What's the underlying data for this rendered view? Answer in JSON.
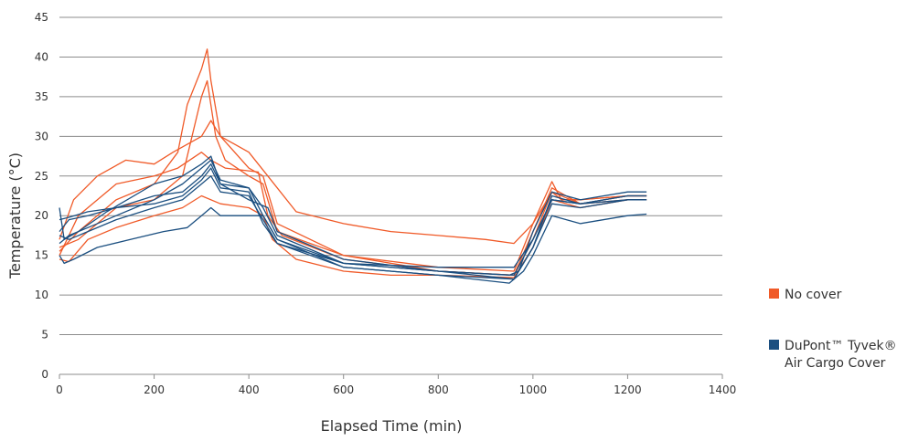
{
  "chart_data": {
    "type": "line",
    "title": "",
    "xlabel": "Elapsed Time (min)",
    "ylabel": "Temperature (°C)",
    "xlim": [
      0,
      1400
    ],
    "ylim": [
      0,
      45
    ],
    "xticks": [
      0,
      200,
      400,
      600,
      800,
      1000,
      1200,
      1400
    ],
    "yticks": [
      0,
      5,
      10,
      15,
      20,
      25,
      30,
      35,
      40,
      45
    ],
    "grid": "horizontal",
    "legend_position": "right",
    "legend": [
      {
        "label": "No cover",
        "color": "#f05a28"
      },
      {
        "label": "DuPont™ Tyvek®",
        "label2": "Air Cargo Cover",
        "color": "#1b4f80"
      }
    ],
    "series": [
      {
        "group": "No cover",
        "color": "#f05a28",
        "x": [
          0,
          40,
          120,
          200,
          250,
          270,
          300,
          312,
          320,
          340,
          400,
          430,
          460,
          600,
          800,
          960,
          1000,
          1040,
          1060,
          1100,
          1200,
          1240
        ],
        "y": [
          15.5,
          18,
          22,
          24,
          28,
          34,
          38.5,
          41,
          37,
          30,
          26,
          25,
          19,
          15,
          13.5,
          13,
          19,
          24.3,
          22,
          22,
          22.5,
          22.5
        ]
      },
      {
        "group": "No cover",
        "color": "#f05a28",
        "x": [
          0,
          40,
          120,
          200,
          260,
          300,
          312,
          330,
          350,
          400,
          430,
          460,
          600,
          800,
          960,
          1000,
          1040,
          1060,
          1100,
          1200,
          1240
        ],
        "y": [
          16,
          17,
          21,
          22,
          25,
          35,
          37,
          30,
          27,
          25,
          24,
          18,
          15,
          13,
          12.5,
          17,
          23,
          22,
          22,
          22.5,
          22.5
        ]
      },
      {
        "group": "No cover",
        "color": "#f05a28",
        "x": [
          0,
          30,
          80,
          140,
          200,
          240,
          300,
          320,
          340,
          400,
          440,
          500,
          600,
          700,
          800,
          900,
          960,
          1000,
          1040,
          1100,
          1200,
          1240
        ],
        "y": [
          17,
          22,
          25,
          27,
          26.5,
          28,
          30,
          32,
          30,
          28,
          25,
          20.5,
          19,
          18,
          17.5,
          17,
          16.5,
          19,
          23,
          21.5,
          22,
          22
        ]
      },
      {
        "group": "No cover",
        "color": "#f05a28",
        "x": [
          0,
          40,
          120,
          200,
          250,
          300,
          320,
          350,
          420,
          440,
          470,
          600,
          800,
          960,
          1000,
          1040,
          1100,
          1200,
          1240
        ],
        "y": [
          15,
          20,
          24,
          25,
          26,
          28,
          27,
          26,
          25.5,
          20,
          17.5,
          14.5,
          13,
          12.5,
          18,
          23.5,
          21.5,
          22.5,
          22.5
        ]
      },
      {
        "group": "No cover",
        "color": "#f05a28",
        "x": [
          0,
          20,
          60,
          120,
          200,
          260,
          300,
          340,
          400,
          430,
          450,
          500,
          600,
          700,
          800,
          960,
          1000,
          1040,
          1100,
          1200,
          1240
        ],
        "y": [
          14.5,
          14.2,
          17,
          18.5,
          20,
          21,
          22.5,
          21.5,
          21,
          20,
          17,
          14.5,
          13,
          12.5,
          12.5,
          12.2,
          16,
          22,
          21,
          22,
          22
        ]
      },
      {
        "group": "Tyvek",
        "color": "#1b4f80",
        "x": [
          0,
          10,
          40,
          100,
          200,
          260,
          300,
          320,
          340,
          400,
          440,
          460,
          600,
          800,
          950,
          970,
          1000,
          1040,
          1100,
          1200,
          1240
        ],
        "y": [
          21,
          17,
          18,
          20.5,
          24,
          25,
          26.5,
          27.5,
          24,
          22,
          21,
          18,
          14.5,
          13,
          12.5,
          13,
          18,
          23,
          22,
          23,
          23
        ]
      },
      {
        "group": "Tyvek",
        "color": "#1b4f80",
        "x": [
          0,
          20,
          60,
          120,
          200,
          260,
          300,
          320,
          340,
          400,
          430,
          460,
          600,
          800,
          960,
          1000,
          1040,
          1100,
          1200,
          1240
        ],
        "y": [
          18,
          19.5,
          20,
          21,
          22.5,
          23,
          25,
          26.5,
          24,
          23.5,
          21,
          17.5,
          14,
          13,
          12.5,
          17,
          22,
          21.5,
          22,
          22
        ]
      },
      {
        "group": "Tyvek",
        "color": "#1b4f80",
        "x": [
          0,
          20,
          60,
          120,
          200,
          260,
          300,
          320,
          340,
          400,
          430,
          460,
          600,
          800,
          960,
          1000,
          1040,
          1100,
          1200,
          1240
        ],
        "y": [
          16.5,
          17.5,
          18.5,
          20,
          22,
          24,
          26,
          27,
          24.5,
          23.5,
          20,
          17,
          14,
          13,
          12,
          16,
          22.5,
          21.5,
          22.5,
          22.5
        ]
      },
      {
        "group": "Tyvek",
        "color": "#1b4f80",
        "x": [
          0,
          20,
          60,
          120,
          200,
          260,
          300,
          320,
          340,
          400,
          430,
          460,
          600,
          800,
          960,
          1000,
          1040,
          1100,
          1200,
          1240
        ],
        "y": [
          19.5,
          19.8,
          20.5,
          21,
          21.5,
          22.5,
          24.5,
          26,
          23.5,
          23,
          19,
          16.5,
          13.5,
          12.5,
          12,
          16,
          21.5,
          21,
          22,
          22
        ]
      },
      {
        "group": "Tyvek",
        "color": "#1b4f80",
        "x": [
          0,
          10,
          30,
          80,
          150,
          220,
          270,
          300,
          320,
          340,
          430,
          460,
          600,
          800,
          950,
          980,
          1000,
          1040,
          1100,
          1200,
          1240
        ],
        "y": [
          15,
          14,
          14.5,
          16,
          17,
          18,
          18.5,
          20,
          21,
          20,
          20,
          17,
          13.5,
          12.5,
          11.5,
          13,
          15,
          20,
          19,
          20,
          20.2
        ]
      },
      {
        "group": "Tyvek",
        "color": "#1b4f80",
        "x": [
          0,
          20,
          60,
          120,
          200,
          260,
          300,
          320,
          340,
          400,
          430,
          460,
          600,
          800,
          960,
          1000,
          1040,
          1100,
          1200,
          1240
        ],
        "y": [
          17.5,
          17,
          18,
          19.5,
          21,
          22,
          24,
          25,
          23,
          22.5,
          19.5,
          16.5,
          14,
          13.5,
          13.5,
          17,
          22,
          21.5,
          22.5,
          22.5
        ]
      }
    ]
  }
}
